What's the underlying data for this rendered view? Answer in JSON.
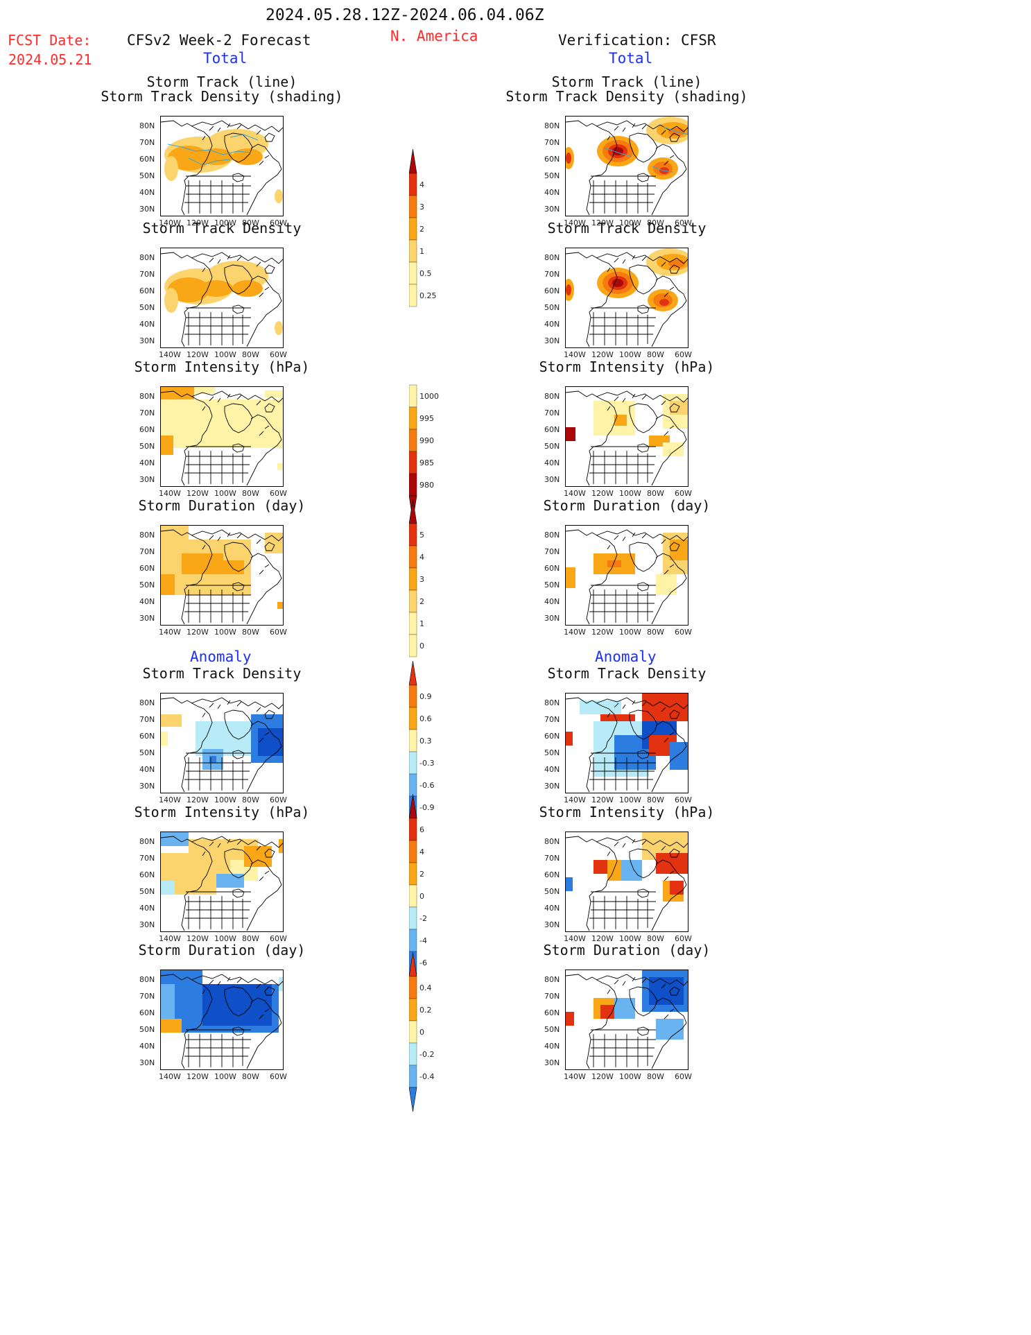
{
  "header": {
    "date_range": "2024.05.28.12Z-2024.06.04.06Z",
    "fcst_label": "FCST Date:",
    "fcst_date": "2024.05.21",
    "forecast_title": "CFSv2 Week-2 Forecast",
    "region": "N. America",
    "verification_title": "Verification: CFSR"
  },
  "sections": {
    "total": "Total",
    "anomaly": "Anomaly"
  },
  "panel_titles": {
    "track_line_1": "Storm Track (line)",
    "track_line_2": "Storm Track Density (shading)",
    "track_density": "Storm Track Density",
    "intensity": "Storm Intensity (hPa)",
    "duration": "Storm Duration (day)"
  },
  "axes": {
    "lat_labels": [
      "80N",
      "70N",
      "60N",
      "50N",
      "40N",
      "30N"
    ],
    "lon_labels": [
      "140W",
      "120W",
      "100W",
      "80W",
      "60W"
    ]
  },
  "colorbars": {
    "density": [
      "4",
      "3",
      "2",
      "1",
      "0.5",
      "0.25"
    ],
    "intensity": [
      "1000",
      "995",
      "990",
      "985",
      "980"
    ],
    "duration": [
      "5",
      "4",
      "3",
      "2",
      "1",
      "0"
    ],
    "density_anom": [
      "0.9",
      "0.6",
      "0.3",
      "-0.3",
      "-0.6",
      "-0.9"
    ],
    "intensity_anom": [
      "6",
      "4",
      "2",
      "0",
      "-2",
      "-4",
      "-6"
    ],
    "duration_anom": [
      "0.4",
      "0.2",
      "0",
      "-0.2",
      "-0.4"
    ]
  },
  "colors": {
    "pale_yellow": "#fff3a8",
    "light_orange": "#fcd46e",
    "orange": "#f9a617",
    "dark_orange": "#f57a10",
    "red": "#e2320f",
    "dark_red": "#aa0808",
    "light_blue": "#b7ebf7",
    "mid_blue": "#69b4f0",
    "blue": "#2d7ce0",
    "dark_blue": "#0f4fc8",
    "title_red": "#ff2a2a",
    "title_blue": "#1a2fff"
  }
}
